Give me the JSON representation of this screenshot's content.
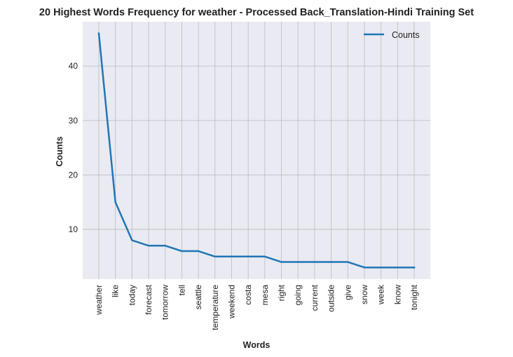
{
  "chart_data": {
    "type": "line",
    "title": "20 Highest Words Frequency for weather - Processed Back_Translation-Hindi Training Set",
    "xlabel": "Words",
    "ylabel": "Counts",
    "categories": [
      "weather",
      "like",
      "today",
      "forecast",
      "tomorrow",
      "tell",
      "seattle",
      "temperature",
      "weekend",
      "costa",
      "mesa",
      "right",
      "going",
      "current",
      "outside",
      "give",
      "snow",
      "week",
      "know",
      "tonight"
    ],
    "series": [
      {
        "name": "Counts",
        "values": [
          46,
          15,
          8,
          7,
          7,
          6,
          6,
          5,
          5,
          5,
          5,
          4,
          4,
          4,
          4,
          4,
          3,
          3,
          3,
          3
        ]
      }
    ],
    "ylim": [
      0.85,
      48.15
    ],
    "yticks": [
      10,
      20,
      30,
      40
    ],
    "grid": true,
    "legend_position": "top-right",
    "line_color": "#1f77b4",
    "background_color": "#eaeaf2"
  }
}
